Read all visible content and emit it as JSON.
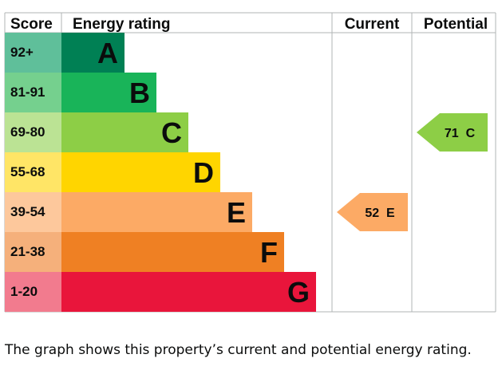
{
  "chart_data": {
    "type": "bar",
    "title": "",
    "headers": {
      "score": "Score",
      "rating": "Energy rating",
      "current": "Current",
      "potential": "Potential"
    },
    "bands": [
      {
        "letter": "A",
        "score": "92+",
        "color": "#008054",
        "light": "#5fbf9a"
      },
      {
        "letter": "B",
        "score": "81-91",
        "color": "#19b459",
        "light": "#75d08e"
      },
      {
        "letter": "C",
        "score": "69-80",
        "color": "#8dce46",
        "light": "#bbe394"
      },
      {
        "letter": "D",
        "score": "55-68",
        "color": "#ffd500",
        "light": "#ffe566"
      },
      {
        "letter": "E",
        "score": "39-54",
        "color": "#fcaa65",
        "light": "#fdc89c"
      },
      {
        "letter": "F",
        "score": "21-38",
        "color": "#ef8023",
        "light": "#f5b07b"
      },
      {
        "letter": "G",
        "score": "1-20",
        "color": "#e9153b",
        "light": "#f27b8e"
      }
    ],
    "current": {
      "value": 52,
      "letter": "E",
      "color": "#fcaa65"
    },
    "potential": {
      "value": 71,
      "letter": "C",
      "color": "#8dce46"
    }
  },
  "caption": "The graph shows this property’s current and potential energy rating."
}
